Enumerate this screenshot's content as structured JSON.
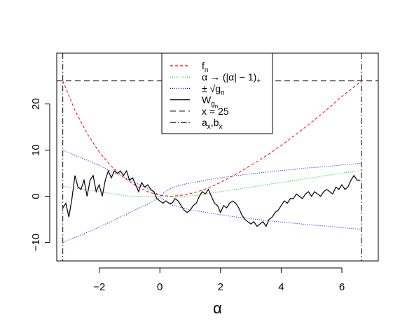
{
  "chart_data": {
    "type": "line",
    "title": "",
    "xlabel": "α",
    "ylabel": "",
    "xlim": [
      -3.4,
      7.2
    ],
    "ylim": [
      -14,
      31
    ],
    "x_ticks": [
      -2,
      0,
      2,
      4,
      6
    ],
    "x_tick_labels": [
      "−2",
      "0",
      "2",
      "4",
      "6"
    ],
    "y_ticks": [
      -10,
      0,
      10,
      20
    ],
    "y_tick_labels": [
      "−10",
      "0",
      "10",
      "20"
    ],
    "grid": false,
    "legend_position": "top-center",
    "vertical_lines": {
      "a_x": -3.2,
      "b_x": 6.65
    },
    "horizontal_line": {
      "y": 25
    },
    "series": [
      {
        "key": "f_n",
        "legend": {
          "main": "f",
          "sub": "n",
          "rest": ""
        },
        "color": "#ff0000",
        "dash": "4,3",
        "x": [
          -3.2,
          -2.8,
          -2.4,
          -2.0,
          -1.6,
          -1.2,
          -0.8,
          -0.4,
          0.0,
          0.4,
          0.8,
          1.2,
          1.6,
          2.0,
          2.4,
          2.8,
          3.2,
          3.6,
          4.0,
          4.4,
          4.8,
          5.2,
          5.6,
          6.0,
          6.4,
          6.65
        ],
        "y": [
          25.0,
          18.6,
          13.6,
          9.6,
          6.5,
          4.1,
          2.3,
          1.0,
          0.2,
          0.0,
          0.3,
          0.9,
          1.8,
          3.0,
          4.4,
          5.9,
          7.5,
          9.2,
          11.0,
          13.0,
          15.0,
          17.1,
          19.3,
          21.6,
          23.7,
          25.0
        ]
      },
      {
        "key": "alpha_map",
        "legend": {
          "main": "α → (|α| − 1)",
          "sub": "+",
          "rest": ""
        },
        "color": "#00cc00",
        "dash": "1,2",
        "x": [
          -3.2,
          -2.8,
          -2.4,
          -2.0,
          -1.6,
          -1.2,
          -1.0,
          -0.8,
          -0.4,
          0.0,
          0.4,
          0.8,
          1.2,
          1.6,
          2.0,
          2.4,
          2.8,
          3.2,
          3.6,
          4.0,
          4.4,
          4.8,
          5.2,
          5.6,
          6.0,
          6.4,
          6.65
        ],
        "y": [
          2.2,
          1.8,
          1.4,
          1.0,
          0.6,
          0.2,
          0.0,
          0.0,
          0.0,
          0.0,
          0.0,
          0.0,
          0.2,
          0.6,
          1.0,
          1.4,
          1.8,
          2.2,
          2.6,
          3.0,
          3.4,
          3.8,
          4.2,
          4.6,
          5.0,
          5.4,
          5.65
        ]
      },
      {
        "key": "sqrt_g_upper",
        "legend": {
          "main": "± √g",
          "sub": "n",
          "rest": ""
        },
        "color": "#0000ff",
        "dash": "1,2",
        "x": [
          -3.2,
          -2.8,
          -2.4,
          -2.0,
          -1.6,
          -1.2,
          -0.8,
          -0.4,
          0.0,
          0.4,
          0.8,
          1.2,
          1.6,
          2.0,
          2.4,
          2.8,
          3.2,
          3.6,
          4.0,
          4.4,
          4.8,
          5.2,
          5.6,
          6.0,
          6.4,
          6.65
        ],
        "y": [
          10.0,
          8.9,
          7.8,
          6.7,
          5.4,
          4.2,
          2.9,
          1.7,
          0.2,
          1.9,
          2.6,
          3.1,
          3.6,
          4.0,
          4.4,
          4.7,
          5.0,
          5.3,
          5.6,
          5.8,
          6.1,
          6.3,
          6.5,
          6.8,
          7.0,
          7.2
        ]
      },
      {
        "key": "sqrt_g_lower",
        "color": "#0000ff",
        "dash": "1,2",
        "x": [
          -3.2,
          -2.8,
          -2.4,
          -2.0,
          -1.6,
          -1.2,
          -0.8,
          -0.4,
          0.0,
          0.4,
          0.8,
          1.2,
          1.6,
          2.0,
          2.4,
          2.8,
          3.2,
          3.6,
          4.0,
          4.4,
          4.8,
          5.2,
          5.6,
          6.0,
          6.4,
          6.65
        ],
        "y": [
          -10.0,
          -8.9,
          -7.8,
          -6.7,
          -5.4,
          -4.2,
          -2.9,
          -1.7,
          -0.2,
          -1.9,
          -2.6,
          -3.1,
          -3.6,
          -4.0,
          -4.4,
          -4.7,
          -5.0,
          -5.3,
          -5.6,
          -5.8,
          -6.1,
          -6.3,
          -6.5,
          -6.8,
          -7.0,
          -7.2
        ]
      },
      {
        "key": "W_gn",
        "legend": {
          "main": "W",
          "sub": "g",
          "subsub": "n",
          "rest": ""
        },
        "color": "#000000",
        "dash": "",
        "x": [
          -3.2,
          -3.1,
          -3.0,
          -2.9,
          -2.8,
          -2.7,
          -2.6,
          -2.5,
          -2.4,
          -2.3,
          -2.2,
          -2.1,
          -2.0,
          -1.9,
          -1.8,
          -1.7,
          -1.6,
          -1.5,
          -1.4,
          -1.3,
          -1.2,
          -1.1,
          -1.0,
          -0.9,
          -0.8,
          -0.7,
          -0.6,
          -0.5,
          -0.4,
          -0.3,
          -0.2,
          -0.1,
          0.0,
          0.1,
          0.2,
          0.3,
          0.4,
          0.5,
          0.6,
          0.7,
          0.8,
          0.9,
          1.0,
          1.1,
          1.2,
          1.3,
          1.4,
          1.5,
          1.6,
          1.7,
          1.8,
          1.9,
          2.0,
          2.1,
          2.2,
          2.3,
          2.4,
          2.5,
          2.6,
          2.7,
          2.8,
          2.9,
          3.0,
          3.1,
          3.2,
          3.3,
          3.4,
          3.5,
          3.6,
          3.7,
          3.8,
          3.9,
          4.0,
          4.1,
          4.2,
          4.3,
          4.4,
          4.5,
          4.6,
          4.7,
          4.8,
          4.9,
          5.0,
          5.1,
          5.2,
          5.3,
          5.4,
          5.5,
          5.6,
          5.7,
          5.8,
          5.9,
          6.0,
          6.1,
          6.2,
          6.3,
          6.4,
          6.5,
          6.6
        ],
        "y": [
          -2.5,
          -1.5,
          -4.5,
          -0.5,
          4.5,
          2.0,
          1.5,
          3.5,
          0.0,
          3.5,
          4.5,
          1.0,
          2.5,
          0.0,
          3.5,
          5.5,
          4.0,
          5.5,
          5.0,
          5.5,
          4.5,
          5.5,
          3.5,
          4.0,
          2.5,
          1.0,
          3.0,
          2.0,
          2.5,
          1.5,
          1.0,
          -0.5,
          -1.0,
          -1.5,
          -1.0,
          -1.5,
          -1.5,
          -0.5,
          -1.0,
          -2.0,
          -3.0,
          -3.5,
          -3.0,
          -2.0,
          -1.5,
          0.0,
          1.0,
          0.5,
          1.5,
          0.0,
          -1.5,
          -2.0,
          -3.5,
          -2.0,
          -2.5,
          -1.5,
          -1.0,
          -1.5,
          -2.5,
          -4.0,
          -5.0,
          -5.5,
          -6.0,
          -5.5,
          -6.5,
          -6.0,
          -5.5,
          -6.5,
          -5.0,
          -4.5,
          -3.5,
          -3.0,
          -2.0,
          -1.0,
          -1.5,
          -0.5,
          -0.5,
          0.5,
          0.0,
          -0.5,
          0.5,
          1.0,
          0.0,
          1.0,
          0.5,
          0.0,
          1.0,
          1.5,
          1.0,
          0.5,
          2.0,
          1.5,
          2.5,
          1.5,
          2.0,
          3.5,
          4.5,
          3.5,
          3.5
        ]
      }
    ],
    "reference_legend": [
      {
        "key": "hline",
        "text": "x = 25",
        "color": "#000000",
        "dash": "8,5"
      },
      {
        "key": "vlines",
        "text_a": "a",
        "sub_a": "x",
        "text_b": "b",
        "sub_b": "x",
        "sep": ",",
        "color": "#000000",
        "dash": "8,3,1.5,3"
      }
    ]
  }
}
